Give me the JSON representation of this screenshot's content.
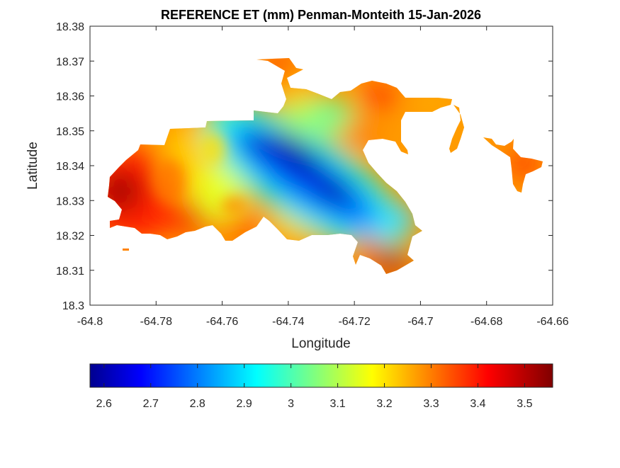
{
  "chart_data": {
    "type": "heatmap",
    "title": "REFERENCE ET (mm) Penman-Monteith 15-Jan-2026",
    "xlabel": "Longitude",
    "ylabel": "Latitude",
    "xlim": [
      -64.8,
      -64.66
    ],
    "ylim": [
      18.3,
      18.38
    ],
    "grid": false,
    "x_ticks": [
      "-64.8",
      "-64.78",
      "-64.76",
      "-64.74",
      "-64.72",
      "-64.7",
      "-64.68",
      "-64.66"
    ],
    "y_ticks": [
      "18.3",
      "18.31",
      "18.32",
      "18.33",
      "18.34",
      "18.35",
      "18.36",
      "18.37",
      "18.38"
    ],
    "colorbar": {
      "colormap": "jet",
      "range": [
        2.57,
        3.56
      ],
      "ticks": [
        "2.6",
        "2.7",
        "2.8",
        "2.9",
        "3",
        "3.1",
        "3.2",
        "3.3",
        "3.4",
        "3.5"
      ],
      "placement": "bottom"
    },
    "field_features": [
      {
        "description_value": 2.6,
        "lon": -64.745,
        "lat": 18.345
      },
      {
        "description_value": 2.6,
        "lon": -64.738,
        "lat": 18.341
      },
      {
        "description_value": 2.65,
        "lon": -64.728,
        "lat": 18.334
      },
      {
        "description_value": 3.5,
        "lon": -64.792,
        "lat": 18.334
      },
      {
        "description_value": 3.45,
        "lon": -64.765,
        "lat": 18.327
      },
      {
        "description_value": 3.5,
        "lon": -64.709,
        "lat": 18.312
      },
      {
        "description_value": 3.45,
        "lon": -64.671,
        "lat": 18.338
      },
      {
        "description_value": 3.1,
        "lon": -64.74,
        "lat": 18.358
      },
      {
        "description_value": 3.3,
        "lon": -64.715,
        "lat": 18.35
      }
    ]
  }
}
